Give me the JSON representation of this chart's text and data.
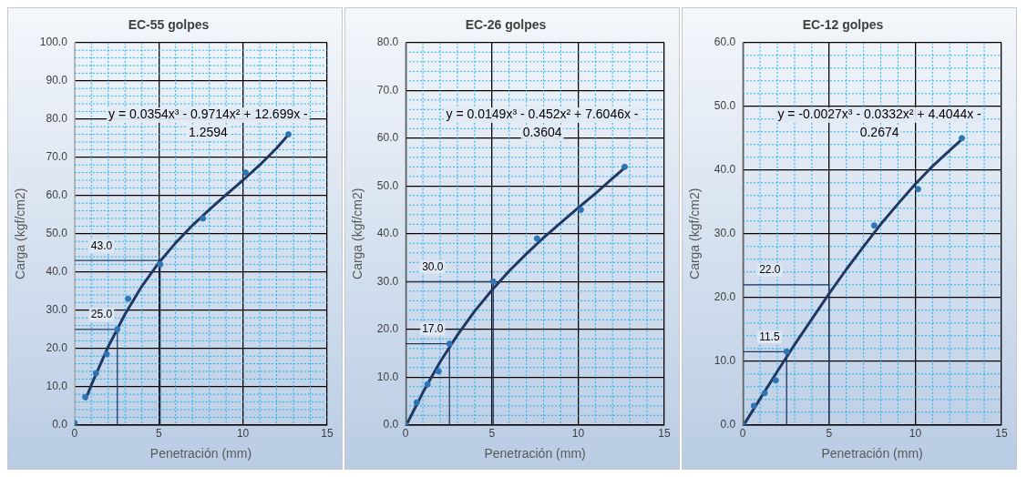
{
  "chart_data": [
    {
      "type": "scatter",
      "title": "EC-55 golpes",
      "xlabel": "Penetración (mm)",
      "ylabel": "Carga (kgf/cm2)",
      "xlim": [
        0,
        15
      ],
      "xticks": [
        0,
        {
          "value": 1,
          "label": null
        },
        {
          "value": 2,
          "label": null
        },
        {
          "value": 3,
          "label": null
        },
        {
          "value": 4,
          "label": null
        },
        5,
        {
          "value": 6,
          "label": null
        },
        {
          "value": 7,
          "label": null
        },
        {
          "value": 8,
          "label": null
        },
        {
          "value": 9,
          "label": null
        },
        10,
        {
          "value": 11,
          "label": null
        },
        {
          "value": 12,
          "label": null
        },
        {
          "value": 13,
          "label": null
        },
        {
          "value": 14,
          "label": null
        },
        15
      ],
      "ylim": [
        0,
        100
      ],
      "yticks": [
        {
          "value": 0,
          "label": "0.0"
        },
        {
          "value": 2,
          "label": null
        },
        {
          "value": 4,
          "label": null
        },
        {
          "value": 6,
          "label": null
        },
        {
          "value": 8,
          "label": null
        },
        {
          "value": 10,
          "label": "10.0"
        },
        {
          "value": 12,
          "label": null
        },
        {
          "value": 14,
          "label": null
        },
        {
          "value": 16,
          "label": null
        },
        {
          "value": 18,
          "label": null
        },
        {
          "value": 20,
          "label": "20.0"
        },
        {
          "value": 22,
          "label": null
        },
        {
          "value": 24,
          "label": null
        },
        {
          "value": 26,
          "label": null
        },
        {
          "value": 28,
          "label": null
        },
        {
          "value": 30,
          "label": "30.0"
        },
        {
          "value": 32,
          "label": null
        },
        {
          "value": 34,
          "label": null
        },
        {
          "value": 36,
          "label": null
        },
        {
          "value": 38,
          "label": null
        },
        {
          "value": 40,
          "label": "40.0"
        },
        {
          "value": 42,
          "label": null
        },
        {
          "value": 44,
          "label": null
        },
        {
          "value": 46,
          "label": null
        },
        {
          "value": 48,
          "label": null
        },
        {
          "value": 50,
          "label": "50.0"
        },
        {
          "value": 52,
          "label": null
        },
        {
          "value": 54,
          "label": null
        },
        {
          "value": 56,
          "label": null
        },
        {
          "value": 58,
          "label": null
        },
        {
          "value": 60,
          "label": "60.0"
        },
        {
          "value": 62,
          "label": null
        },
        {
          "value": 64,
          "label": null
        },
        {
          "value": 66,
          "label": null
        },
        {
          "value": 68,
          "label": null
        },
        {
          "value": 70,
          "label": "70.0"
        },
        {
          "value": 72,
          "label": null
        },
        {
          "value": 74,
          "label": null
        },
        {
          "value": 76,
          "label": null
        },
        {
          "value": 78,
          "label": null
        },
        {
          "value": 80,
          "label": "80.0"
        },
        {
          "value": 82,
          "label": null
        },
        {
          "value": 84,
          "label": null
        },
        {
          "value": 86,
          "label": null
        },
        {
          "value": 88,
          "label": null
        },
        {
          "value": 90,
          "label": "90.0"
        },
        {
          "value": 92,
          "label": null
        },
        {
          "value": 94,
          "label": null
        },
        {
          "value": 96,
          "label": null
        },
        {
          "value": 98,
          "label": null
        },
        {
          "value": 100,
          "label": "100.0"
        }
      ],
      "grid": true,
      "legend": false,
      "series": [
        {
          "type": "scatter",
          "color": "#2e75b6",
          "marker": "circle",
          "x": [
            0,
            0.64,
            1.27,
            1.91,
            2.54,
            3.18,
            5.08,
            7.62,
            10.16,
            12.7
          ],
          "values": [
            0.5,
            7.3,
            13.5,
            18.5,
            25,
            33,
            42,
            54,
            66,
            76
          ]
        },
        {
          "type": "line",
          "color": "#1f3864",
          "marker": "none",
          "x": [
            0.64,
            1,
            2,
            3,
            4,
            5,
            6,
            7,
            8,
            9,
            10,
            11,
            12,
            12.7
          ],
          "values": [
            6.5,
            10.5,
            20.5,
            29,
            36.3,
            42.4,
            47.6,
            52.2,
            56.3,
            60.2,
            64,
            68,
            72.4,
            75.9
          ]
        },
        {
          "type": "line",
          "color": "#1f3864",
          "marker": "none",
          "x": [
            0,
            2.54,
            2.54
          ],
          "values": [
            25,
            25,
            0
          ]
        },
        {
          "type": "line",
          "color": "#1f3864",
          "marker": "none",
          "x": [
            0,
            5.08,
            5.08
          ],
          "values": [
            43,
            43,
            0
          ]
        }
      ],
      "annotations": [
        "y = 0.0354x³ - 0.9714x² + 12.699x - 1.2594",
        {
          "text": "25.0",
          "y": 25
        },
        {
          "text": "43.0",
          "y": 43
        }
      ]
    },
    {
      "type": "scatter",
      "title": "EC-26 golpes",
      "xlabel": "Penetración (mm)",
      "ylabel": "Carga (kgf/cm2)",
      "xlim": [
        0,
        15
      ],
      "xticks": [
        0,
        {
          "value": 1,
          "label": null
        },
        {
          "value": 2,
          "label": null
        },
        {
          "value": 3,
          "label": null
        },
        {
          "value": 4,
          "label": null
        },
        5,
        {
          "value": 6,
          "label": null
        },
        {
          "value": 7,
          "label": null
        },
        {
          "value": 8,
          "label": null
        },
        {
          "value": 9,
          "label": null
        },
        10,
        {
          "value": 11,
          "label": null
        },
        {
          "value": 12,
          "label": null
        },
        {
          "value": 13,
          "label": null
        },
        {
          "value": 14,
          "label": null
        },
        15
      ],
      "ylim": [
        0,
        80
      ],
      "yticks": [
        {
          "value": 0,
          "label": "0.0"
        },
        {
          "value": 2,
          "label": null
        },
        {
          "value": 4,
          "label": null
        },
        {
          "value": 6,
          "label": null
        },
        {
          "value": 8,
          "label": null
        },
        {
          "value": 10,
          "label": "10.0"
        },
        {
          "value": 12,
          "label": null
        },
        {
          "value": 14,
          "label": null
        },
        {
          "value": 16,
          "label": null
        },
        {
          "value": 18,
          "label": null
        },
        {
          "value": 20,
          "label": "20.0"
        },
        {
          "value": 22,
          "label": null
        },
        {
          "value": 24,
          "label": null
        },
        {
          "value": 26,
          "label": null
        },
        {
          "value": 28,
          "label": null
        },
        {
          "value": 30,
          "label": "30.0"
        },
        {
          "value": 32,
          "label": null
        },
        {
          "value": 34,
          "label": null
        },
        {
          "value": 36,
          "label": null
        },
        {
          "value": 38,
          "label": null
        },
        {
          "value": 40,
          "label": "40.0"
        },
        {
          "value": 42,
          "label": null
        },
        {
          "value": 44,
          "label": null
        },
        {
          "value": 46,
          "label": null
        },
        {
          "value": 48,
          "label": null
        },
        {
          "value": 50,
          "label": "50.0"
        },
        {
          "value": 52,
          "label": null
        },
        {
          "value": 54,
          "label": null
        },
        {
          "value": 56,
          "label": null
        },
        {
          "value": 58,
          "label": null
        },
        {
          "value": 60,
          "label": "60.0"
        },
        {
          "value": 62,
          "label": null
        },
        {
          "value": 64,
          "label": null
        },
        {
          "value": 66,
          "label": null
        },
        {
          "value": 68,
          "label": null
        },
        {
          "value": 70,
          "label": "70.0"
        },
        {
          "value": 72,
          "label": null
        },
        {
          "value": 74,
          "label": null
        },
        {
          "value": 76,
          "label": null
        },
        {
          "value": 78,
          "label": null
        },
        {
          "value": 80,
          "label": "80.0"
        }
      ],
      "grid": true,
      "legend": false,
      "series": [
        {
          "type": "scatter",
          "color": "#2e75b6",
          "marker": "circle",
          "x": [
            0,
            0.64,
            1.27,
            1.91,
            2.54,
            5.08,
            7.62,
            10.16,
            12.7
          ],
          "values": [
            0,
            4.7,
            8.5,
            11.2,
            17,
            30,
            39,
            45,
            54
          ]
        },
        {
          "type": "line",
          "color": "#1f3864",
          "marker": "none",
          "x": [
            0.1,
            1,
            2,
            3,
            4,
            5,
            6,
            7,
            8,
            9,
            10,
            11,
            12,
            12.7
          ],
          "values": [
            0.4,
            6.8,
            13.2,
            18.8,
            23.8,
            28.2,
            32.2,
            35.8,
            39.2,
            42.3,
            45.4,
            48.4,
            51.6,
            53.8
          ]
        },
        {
          "type": "line",
          "color": "#1f3864",
          "marker": "none",
          "x": [
            0,
            2.54,
            2.54
          ],
          "values": [
            17,
            17,
            0
          ]
        },
        {
          "type": "line",
          "color": "#1f3864",
          "marker": "none",
          "x": [
            0,
            5.08,
            5.08
          ],
          "values": [
            30,
            30,
            0
          ]
        }
      ],
      "annotations": [
        "y = 0.0149x³ - 0.452x² + 7.6046x - 0.3604",
        {
          "text": "17.0",
          "y": 17
        },
        {
          "text": "30.0",
          "y": 30
        }
      ]
    },
    {
      "type": "scatter",
      "title": "EC-12 golpes",
      "xlabel": "Penetración (mm)",
      "ylabel": "Carga (kgf/cm2)",
      "xlim": [
        0,
        15
      ],
      "xticks": [
        0,
        {
          "value": 1,
          "label": null
        },
        {
          "value": 2,
          "label": null
        },
        {
          "value": 3,
          "label": null
        },
        {
          "value": 4,
          "label": null
        },
        5,
        {
          "value": 6,
          "label": null
        },
        {
          "value": 7,
          "label": null
        },
        {
          "value": 8,
          "label": null
        },
        {
          "value": 9,
          "label": null
        },
        10,
        {
          "value": 11,
          "label": null
        },
        {
          "value": 12,
          "label": null
        },
        {
          "value": 13,
          "label": null
        },
        {
          "value": 14,
          "label": null
        },
        15
      ],
      "ylim": [
        0,
        60
      ],
      "yticks": [
        {
          "value": 0,
          "label": "0.0"
        },
        {
          "value": 2,
          "label": null
        },
        {
          "value": 4,
          "label": null
        },
        {
          "value": 6,
          "label": null
        },
        {
          "value": 8,
          "label": null
        },
        {
          "value": 10,
          "label": "10.0"
        },
        {
          "value": 12,
          "label": null
        },
        {
          "value": 14,
          "label": null
        },
        {
          "value": 16,
          "label": null
        },
        {
          "value": 18,
          "label": null
        },
        {
          "value": 20,
          "label": "20.0"
        },
        {
          "value": 22,
          "label": null
        },
        {
          "value": 24,
          "label": null
        },
        {
          "value": 26,
          "label": null
        },
        {
          "value": 28,
          "label": null
        },
        {
          "value": 30,
          "label": "30.0"
        },
        {
          "value": 32,
          "label": null
        },
        {
          "value": 34,
          "label": null
        },
        {
          "value": 36,
          "label": null
        },
        {
          "value": 38,
          "label": null
        },
        {
          "value": 40,
          "label": "40.0"
        },
        {
          "value": 42,
          "label": null
        },
        {
          "value": 44,
          "label": null
        },
        {
          "value": 46,
          "label": null
        },
        {
          "value": 48,
          "label": null
        },
        {
          "value": 50,
          "label": "50.0"
        },
        {
          "value": 52,
          "label": null
        },
        {
          "value": 54,
          "label": null
        },
        {
          "value": 56,
          "label": null
        },
        {
          "value": 58,
          "label": null
        },
        {
          "value": 60,
          "label": "60.0"
        }
      ],
      "grid": true,
      "legend": false,
      "series": [
        {
          "type": "scatter",
          "color": "#2e75b6",
          "marker": "circle",
          "x": [
            0,
            0.64,
            1.27,
            1.91,
            2.54,
            7.62,
            10.16,
            12.7
          ],
          "values": [
            0,
            3,
            5,
            7,
            11.5,
            31.3,
            37,
            45
          ]
        },
        {
          "type": "line",
          "color": "#1f3864",
          "marker": "none",
          "x": [
            0.1,
            1,
            2,
            3,
            4,
            5,
            6,
            7,
            8,
            9,
            10,
            11,
            12,
            12.7
          ],
          "values": [
            0.2,
            4.1,
            8.4,
            12.6,
            16.6,
            20.6,
            24.4,
            28,
            31.5,
            34.7,
            37.8,
            40.6,
            43.1,
            44.8
          ]
        },
        {
          "type": "line",
          "color": "#1f3864",
          "marker": "none",
          "x": [
            0,
            2.54,
            2.54
          ],
          "values": [
            11.5,
            11.5,
            0
          ]
        },
        {
          "type": "line",
          "color": "#1f3864",
          "marker": "none",
          "x": [
            0,
            5,
            5
          ],
          "values": [
            22,
            22,
            0
          ]
        }
      ],
      "annotations": [
        "y = -0.0027x³ - 0.0332x² + 4.4044x - 0.2674",
        {
          "text": "11.5",
          "y": 11.5
        },
        {
          "text": "22.0",
          "y": 22
        }
      ]
    }
  ]
}
